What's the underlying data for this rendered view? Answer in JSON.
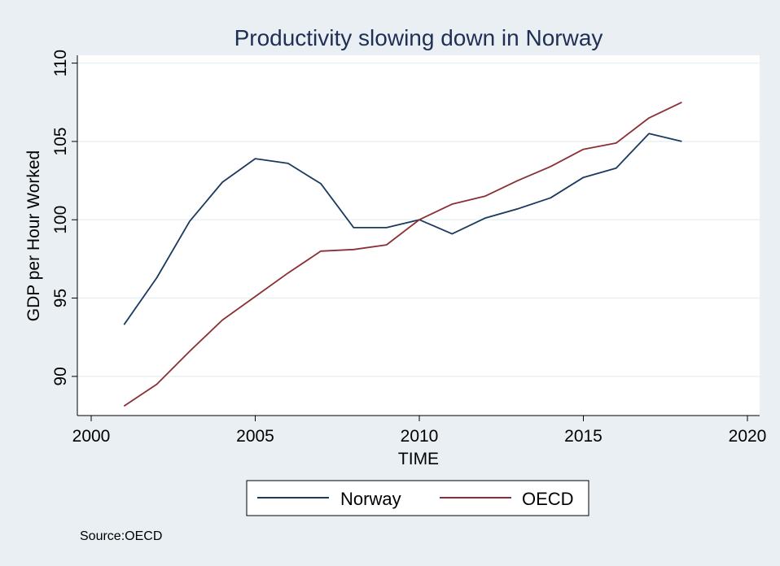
{
  "chart_data": {
    "type": "line",
    "title": "Productivity slowing down in Norway",
    "xlabel": "TIME",
    "ylabel": "GDP per Hour Worked",
    "xlim": [
      2000,
      2020
    ],
    "ylim": [
      87.5,
      110.5
    ],
    "xticks": [
      2000,
      2005,
      2010,
      2015,
      2020
    ],
    "yticks": [
      90,
      95,
      100,
      105,
      110
    ],
    "grid": true,
    "legend_position": "bottom",
    "x": [
      2001,
      2002,
      2003,
      2004,
      2005,
      2006,
      2007,
      2008,
      2009,
      2010,
      2011,
      2012,
      2013,
      2014,
      2015,
      2016,
      2017,
      2018
    ],
    "series": [
      {
        "name": "Norway",
        "color": "#1a3a5e",
        "values": [
          93.3,
          96.3,
          99.9,
          102.4,
          103.9,
          103.6,
          102.3,
          99.5,
          99.5,
          100.0,
          99.1,
          100.1,
          100.7,
          101.4,
          102.7,
          103.3,
          105.5,
          105.0
        ]
      },
      {
        "name": "OECD",
        "color": "#8b2f36",
        "values": [
          88.1,
          89.5,
          91.6,
          93.6,
          95.1,
          96.6,
          98.0,
          98.1,
          98.4,
          100.0,
          101.0,
          101.5,
          102.5,
          103.4,
          104.5,
          104.9,
          106.5,
          107.5
        ]
      }
    ],
    "note": "Source:OECD"
  }
}
